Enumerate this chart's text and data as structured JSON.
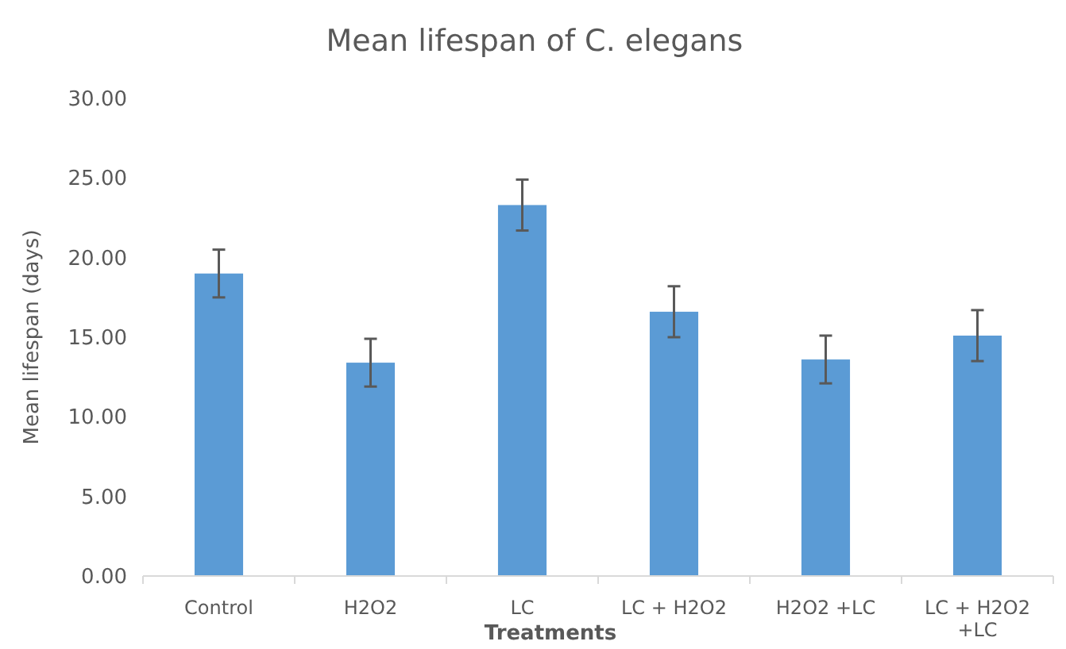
{
  "chart_data": {
    "type": "bar",
    "title": "Mean lifespan of C. elegans",
    "xlabel": "Treatments",
    "ylabel": "Mean lifespan (days)",
    "categories": [
      "Control",
      "H2O2",
      "LC",
      "LC + H2O2",
      "H2O2 +LC",
      "LC + H2O2 +LC"
    ],
    "values": [
      19.0,
      13.4,
      23.3,
      16.6,
      13.6,
      15.1
    ],
    "errors": [
      1.5,
      1.5,
      1.6,
      1.6,
      1.5,
      1.6
    ],
    "color": "#5b9bd5",
    "ylim": [
      0,
      30
    ],
    "yticks": [
      {
        "value": 0,
        "label": "0.00"
      },
      {
        "value": 5,
        "label": "5.00"
      },
      {
        "value": 10,
        "label": "10.00"
      },
      {
        "value": 15,
        "label": "15.00"
      },
      {
        "value": 20,
        "label": "20.00"
      },
      {
        "value": 25,
        "label": "25.00"
      },
      {
        "value": 30,
        "label": "30.00"
      }
    ],
    "grid": false
  }
}
